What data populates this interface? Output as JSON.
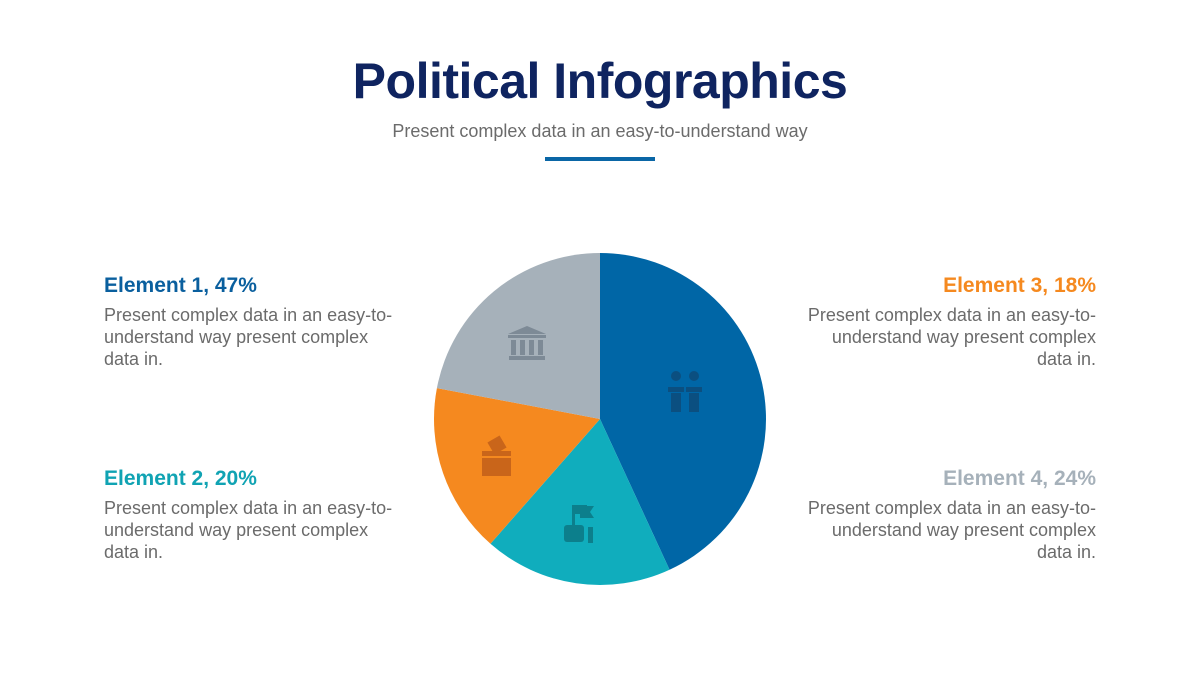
{
  "header": {
    "title": "Political Infographics",
    "subtitle": "Present complex data in an easy-to-understand way"
  },
  "chart_data": {
    "type": "pie",
    "start": "top",
    "direction": "clockwise",
    "slices": [
      {
        "label": "Element 1, 47%",
        "value": 47,
        "color": "#0066a6",
        "icon": "debate-podiums-icon"
      },
      {
        "label": "Element 2, 20%",
        "value": 20,
        "color": "#10adbd",
        "icon": "hand-flag-icon"
      },
      {
        "label": "Element 3, 18%",
        "value": 18,
        "color": "#f5891f",
        "icon": "ballot-box-icon"
      },
      {
        "label": "Element 4, 24%",
        "value": 24,
        "color": "#a6b1ba",
        "icon": "government-building-icon"
      }
    ]
  },
  "elements": [
    {
      "title": "Element 1, 47%",
      "color": "#0a5f9e",
      "text": "Present complex data in an easy-to-understand way present complex data in."
    },
    {
      "title": "Element 2, 20%",
      "color": "#10a3b3",
      "text": "Present complex data in an easy-to-understand way present complex data in."
    },
    {
      "title": "Element 3, 18%",
      "color": "#f5891f",
      "text": "Present complex data in an easy-to-understand way present complex data in."
    },
    {
      "title": "Element 4, 24%",
      "color": "#a6b1ba",
      "text": "Present complex data in an easy-to-understand way present complex data in."
    }
  ]
}
